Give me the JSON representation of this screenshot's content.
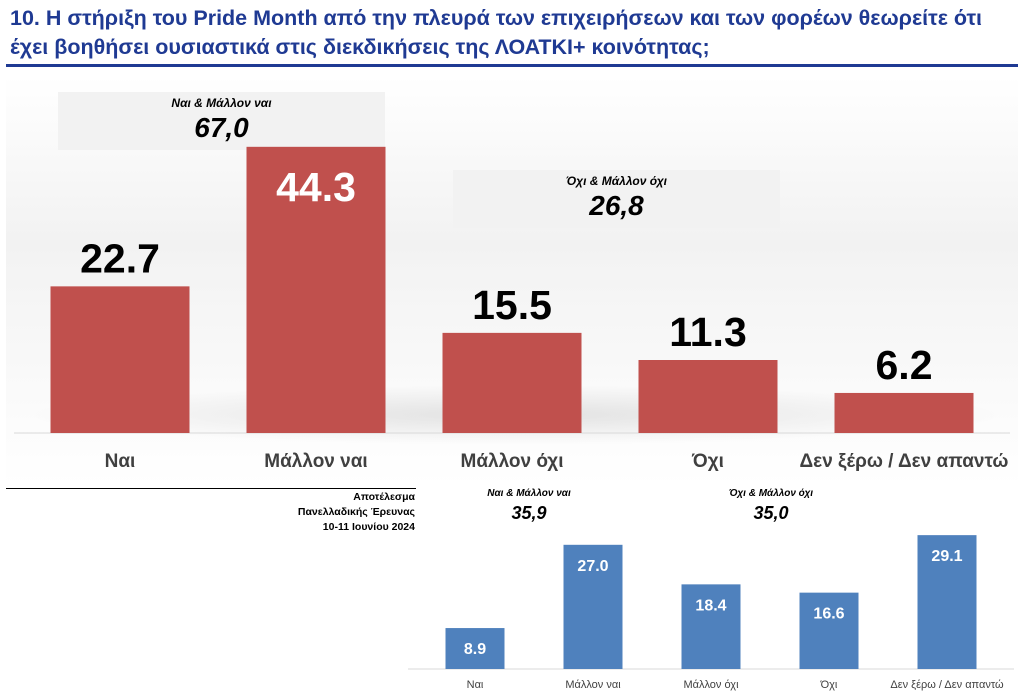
{
  "title": "10. Η στήριξη του Pride Month από την πλευρά των επιχειρήσεων και των φορέων θεωρείτε ότι έχει βοηθήσει ουσιαστικά στις διεκδικήσεις της ΛΟΑΤΚΙ+ κοινότητας;",
  "source": {
    "line1": "Αποτέλεσμα",
    "line2": "Πανελλαδικής Έρευνας",
    "line3": "10-11 Ιουνίου 2024"
  },
  "chart_data": [
    {
      "type": "bar",
      "categories": [
        "Ναι",
        "Μάλλον ναι",
        "Μάλλον όχι",
        "Όχι",
        "Δεν ξέρω / Δεν απαντώ"
      ],
      "values": [
        22.7,
        44.3,
        15.5,
        11.3,
        6.2
      ],
      "value_labels": [
        "22.7",
        "44.3",
        "15.5",
        "11.3",
        "6.2"
      ],
      "ylim": [
        0,
        50
      ],
      "grid": false,
      "color": "#c0504d",
      "summaries": [
        {
          "label": "Ναι & Μάλλον ναι",
          "value": "67,0"
        },
        {
          "label": "Όχι & Μάλλον όχι",
          "value": "26,8"
        }
      ]
    },
    {
      "type": "bar",
      "categories": [
        "Ναι",
        "Μάλλον ναι",
        "Μάλλον όχι",
        "Όχι",
        "Δεν ξέρω / Δεν απαντώ"
      ],
      "values": [
        8.9,
        27.0,
        18.4,
        16.6,
        29.1
      ],
      "value_labels": [
        "8.9",
        "27.0",
        "18.4",
        "16.6",
        "29.1"
      ],
      "ylim": [
        0,
        30
      ],
      "grid": false,
      "color": "#4f81bd",
      "summaries": [
        {
          "label": "Ναι & Μάλλον ναι",
          "value": "35,9"
        },
        {
          "label": "Όχι & Μάλλον όχι",
          "value": "35,0"
        }
      ]
    }
  ]
}
